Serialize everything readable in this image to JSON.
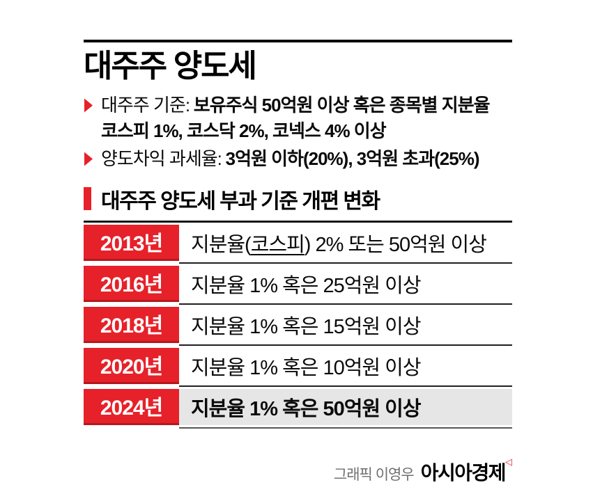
{
  "colors": {
    "red": "#e62129",
    "red_dark": "#b5181d",
    "row_gray": "#e6e6e7",
    "line_dark": "#141414",
    "credit_gray": "#6f6f6f"
  },
  "title": "대주주 양도세",
  "bullets": [
    {
      "marker_icon": "red-triangle-right",
      "label": "대주주 기준:",
      "text": "보유주식 50억원 이상 혹은 종목별 지분율",
      "text_line2": "코스피 1%, 코스닥 2%, 코넥스 4% 이상"
    },
    {
      "marker_icon": "red-triangle-right",
      "label": "양도차익 과세율:",
      "text": "3억원 이하(20%), 3억원 초과(25%)"
    }
  ],
  "section": {
    "title": "대주주 양도세 부과 기준 개편 변화"
  },
  "table": {
    "rows": [
      {
        "year": "2013년",
        "desc_pre": "지분율(",
        "desc_u": "코스피",
        "desc_post": ") 2% 또는 50억원 이상",
        "highlight": false
      },
      {
        "year": "2016년",
        "desc_pre": "지분율 1% 혹은 25억원 이상",
        "desc_u": "",
        "desc_post": "",
        "highlight": false
      },
      {
        "year": "2018년",
        "desc_pre": "지분율 1% 혹은 15억원 이상",
        "desc_u": "",
        "desc_post": "",
        "highlight": false
      },
      {
        "year": "2020년",
        "desc_pre": "지분율 1% 혹은 10억원 이상",
        "desc_u": "",
        "desc_post": "",
        "highlight": false
      },
      {
        "year": "2024년",
        "desc_pre": "지분율 1% 혹은 50억원 이상",
        "desc_u": "",
        "desc_post": "",
        "highlight": true
      }
    ]
  },
  "footer": {
    "credit": "그래픽 이영우",
    "brand": "아시아경제",
    "brand_mark_icon": "◁"
  }
}
